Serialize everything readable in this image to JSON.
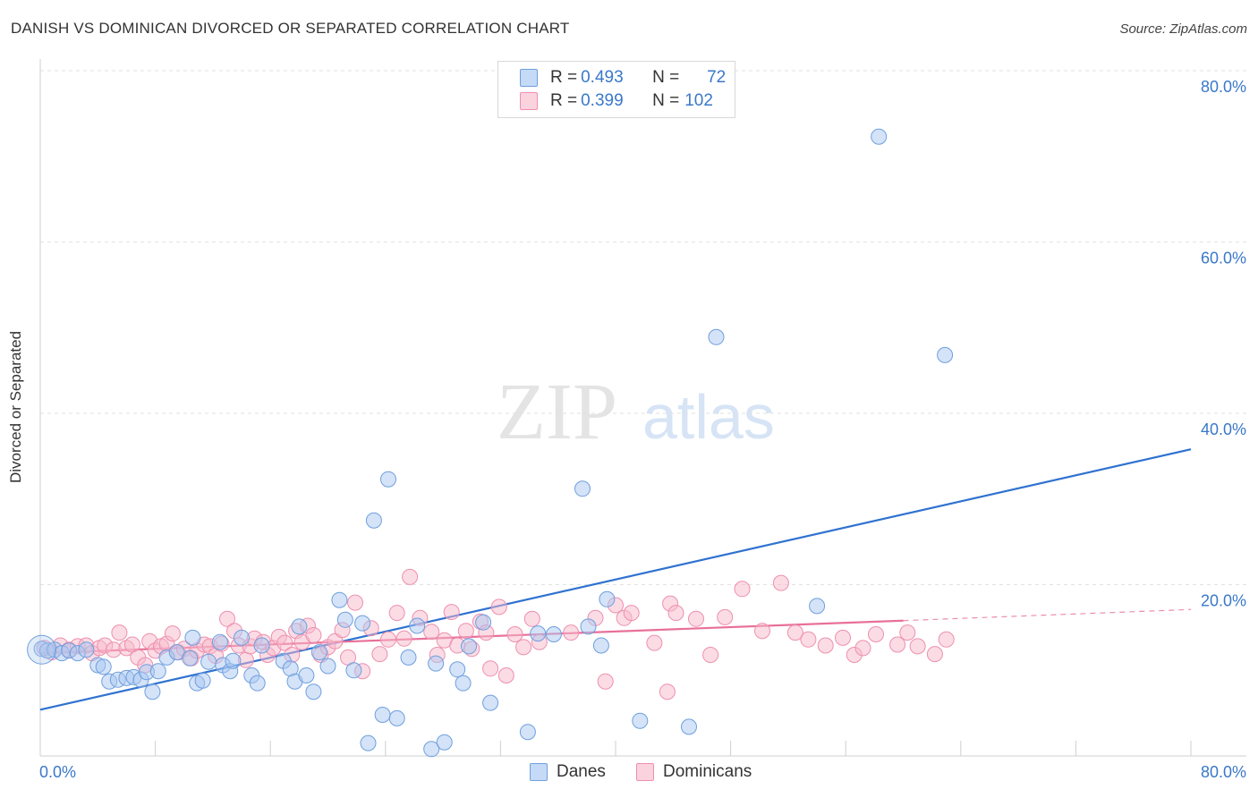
{
  "title": "DANISH VS DOMINICAN DIVORCED OR SEPARATED CORRELATION CHART",
  "source": "Source: ZipAtlas.com",
  "watermark": {
    "zip": "ZIP",
    "atlas": "atlas"
  },
  "stats": {
    "danes": {
      "r_label": "R = ",
      "r": "0.493",
      "n_label": "N = ",
      "n": "72",
      "color": "#a9c8f2"
    },
    "dominicans": {
      "r_label": "R = ",
      "r": "0.399",
      "n_label": "N = ",
      "n": "102",
      "color": "#f7b9cc"
    }
  },
  "legend": {
    "danes": "Danes",
    "dominicans": "Dominicans"
  },
  "colors": {
    "danes_fill": "#a9c8f2",
    "danes_stroke": "#6f9fdd",
    "danes_line": "#2f72d0",
    "dominicans_fill": "#f7b9cc",
    "dominicans_stroke": "#ee8faf",
    "dominicans_line": "#e8709a",
    "axis_text": "#3a78c9"
  },
  "chart_data": {
    "type": "scatter",
    "ylabel": "Divorced or Separated",
    "xlim": [
      0,
      80
    ],
    "ylim": [
      0,
      80
    ],
    "x_tick_labels": [
      "0.0%",
      "80.0%"
    ],
    "y_tick_labels": [
      "20.0%",
      "40.0%",
      "60.0%",
      "80.0%"
    ],
    "y_ticks": [
      20,
      40,
      60,
      80
    ],
    "x_minor_ticks": [
      8,
      16,
      24,
      32,
      40,
      48,
      56,
      64,
      72,
      80
    ],
    "grid": true,
    "series": [
      {
        "name": "Danes",
        "trend": {
          "x0": 0,
          "y0": 5.4,
          "x1": 80,
          "y1": 35.8
        },
        "points": [
          [
            0.1,
            12.5
          ],
          [
            0.5,
            12.3
          ],
          [
            1.0,
            12.4
          ],
          [
            1.5,
            12.0
          ],
          [
            2.0,
            12.3
          ],
          [
            2.6,
            12.0
          ],
          [
            3.2,
            12.4
          ],
          [
            4.0,
            10.6
          ],
          [
            4.4,
            10.4
          ],
          [
            4.8,
            8.7
          ],
          [
            5.4,
            8.9
          ],
          [
            6.0,
            9.1
          ],
          [
            6.5,
            9.2
          ],
          [
            7.0,
            8.9
          ],
          [
            7.4,
            9.8
          ],
          [
            7.8,
            7.5
          ],
          [
            8.2,
            9.9
          ],
          [
            8.8,
            11.5
          ],
          [
            9.5,
            12.1
          ],
          [
            10.4,
            11.4
          ],
          [
            10.6,
            13.8
          ],
          [
            10.9,
            8.5
          ],
          [
            11.3,
            8.8
          ],
          [
            11.7,
            11.0
          ],
          [
            12.5,
            13.3
          ],
          [
            12.7,
            10.6
          ],
          [
            13.2,
            9.9
          ],
          [
            13.4,
            11.1
          ],
          [
            14.0,
            13.8
          ],
          [
            14.7,
            9.4
          ],
          [
            15.1,
            8.5
          ],
          [
            15.4,
            12.9
          ],
          [
            16.9,
            11.1
          ],
          [
            17.4,
            10.2
          ],
          [
            17.7,
            8.7
          ],
          [
            18.0,
            15.1
          ],
          [
            18.5,
            9.4
          ],
          [
            19.0,
            7.5
          ],
          [
            19.4,
            12.1
          ],
          [
            20.0,
            10.5
          ],
          [
            20.8,
            18.2
          ],
          [
            21.2,
            15.9
          ],
          [
            21.8,
            10.0
          ],
          [
            22.4,
            15.5
          ],
          [
            22.8,
            1.5
          ],
          [
            23.2,
            27.5
          ],
          [
            23.8,
            4.8
          ],
          [
            24.2,
            32.3
          ],
          [
            24.8,
            4.4
          ],
          [
            25.6,
            11.5
          ],
          [
            26.2,
            15.2
          ],
          [
            27.2,
            0.8
          ],
          [
            27.5,
            10.8
          ],
          [
            28.1,
            1.6
          ],
          [
            29.0,
            10.1
          ],
          [
            29.4,
            8.5
          ],
          [
            29.8,
            12.8
          ],
          [
            30.8,
            15.6
          ],
          [
            31.3,
            6.2
          ],
          [
            33.9,
            2.8
          ],
          [
            34.6,
            14.3
          ],
          [
            35.7,
            14.2
          ],
          [
            37.7,
            31.2
          ],
          [
            38.1,
            15.1
          ],
          [
            39.0,
            12.9
          ],
          [
            39.4,
            18.3
          ],
          [
            41.7,
            4.1
          ],
          [
            45.1,
            3.4
          ],
          [
            47.0,
            48.9
          ],
          [
            54.0,
            17.5
          ],
          [
            58.3,
            72.3
          ],
          [
            62.9,
            46.8
          ]
        ]
      },
      {
        "name": "Dominicans",
        "trend": {
          "x0": 0,
          "y0": 12.0,
          "x1": 60,
          "y1": 15.8
        },
        "trend_dashed": {
          "x0": 60,
          "y0": 15.8,
          "x1": 80,
          "y1": 17.1
        },
        "points": [
          [
            0.3,
            12.6
          ],
          [
            0.8,
            12.1
          ],
          [
            1.4,
            12.9
          ],
          [
            2.0,
            12.4
          ],
          [
            2.6,
            12.8
          ],
          [
            3.2,
            12.9
          ],
          [
            3.6,
            12.0
          ],
          [
            4.1,
            12.6
          ],
          [
            4.5,
            12.9
          ],
          [
            5.1,
            12.4
          ],
          [
            5.5,
            14.4
          ],
          [
            6.0,
            12.6
          ],
          [
            6.4,
            13.0
          ],
          [
            6.8,
            11.5
          ],
          [
            7.3,
            10.6
          ],
          [
            7.6,
            13.4
          ],
          [
            8.0,
            12.3
          ],
          [
            8.4,
            12.8
          ],
          [
            8.8,
            13.1
          ],
          [
            9.2,
            14.3
          ],
          [
            9.6,
            12.1
          ],
          [
            10.0,
            12.5
          ],
          [
            10.5,
            11.4
          ],
          [
            10.9,
            12.3
          ],
          [
            11.4,
            13.0
          ],
          [
            11.8,
            12.8
          ],
          [
            12.2,
            11.7
          ],
          [
            12.6,
            13.1
          ],
          [
            13.0,
            16.0
          ],
          [
            13.5,
            14.6
          ],
          [
            13.8,
            12.9
          ],
          [
            14.3,
            11.2
          ],
          [
            14.6,
            12.8
          ],
          [
            14.9,
            13.7
          ],
          [
            15.5,
            13.3
          ],
          [
            15.8,
            11.8
          ],
          [
            16.2,
            12.6
          ],
          [
            16.6,
            13.9
          ],
          [
            17.0,
            13.2
          ],
          [
            17.5,
            11.8
          ],
          [
            17.8,
            14.6
          ],
          [
            18.2,
            13.3
          ],
          [
            18.6,
            15.2
          ],
          [
            19.0,
            14.1
          ],
          [
            19.5,
            11.8
          ],
          [
            20.0,
            12.7
          ],
          [
            20.5,
            13.4
          ],
          [
            21.0,
            14.7
          ],
          [
            21.4,
            11.5
          ],
          [
            21.9,
            17.9
          ],
          [
            22.4,
            9.9
          ],
          [
            23.0,
            14.9
          ],
          [
            23.6,
            11.9
          ],
          [
            24.2,
            13.6
          ],
          [
            24.8,
            16.7
          ],
          [
            25.3,
            13.7
          ],
          [
            25.7,
            20.9
          ],
          [
            26.4,
            16.1
          ],
          [
            27.2,
            14.5
          ],
          [
            27.6,
            11.8
          ],
          [
            28.1,
            13.5
          ],
          [
            28.6,
            16.8
          ],
          [
            29.0,
            12.9
          ],
          [
            29.6,
            14.6
          ],
          [
            30.0,
            12.5
          ],
          [
            30.6,
            15.7
          ],
          [
            31.0,
            14.4
          ],
          [
            31.3,
            10.2
          ],
          [
            31.9,
            17.4
          ],
          [
            32.4,
            9.4
          ],
          [
            33.0,
            14.2
          ],
          [
            33.6,
            12.7
          ],
          [
            34.2,
            16.0
          ],
          [
            34.7,
            13.3
          ],
          [
            36.9,
            14.4
          ],
          [
            38.6,
            16.1
          ],
          [
            39.3,
            8.7
          ],
          [
            40.0,
            17.6
          ],
          [
            40.6,
            16.1
          ],
          [
            41.1,
            16.7
          ],
          [
            42.7,
            13.2
          ],
          [
            43.6,
            7.5
          ],
          [
            43.8,
            17.8
          ],
          [
            44.2,
            16.7
          ],
          [
            45.6,
            16.0
          ],
          [
            46.6,
            11.8
          ],
          [
            47.6,
            16.2
          ],
          [
            48.8,
            19.5
          ],
          [
            50.2,
            14.6
          ],
          [
            51.5,
            20.2
          ],
          [
            52.5,
            14.4
          ],
          [
            53.4,
            13.6
          ],
          [
            54.6,
            12.9
          ],
          [
            55.8,
            13.8
          ],
          [
            56.6,
            11.8
          ],
          [
            57.2,
            12.6
          ],
          [
            58.1,
            14.2
          ],
          [
            59.6,
            13.0
          ],
          [
            60.3,
            14.4
          ],
          [
            61.0,
            12.8
          ],
          [
            62.2,
            11.9
          ],
          [
            63.0,
            13.6
          ]
        ]
      }
    ]
  }
}
